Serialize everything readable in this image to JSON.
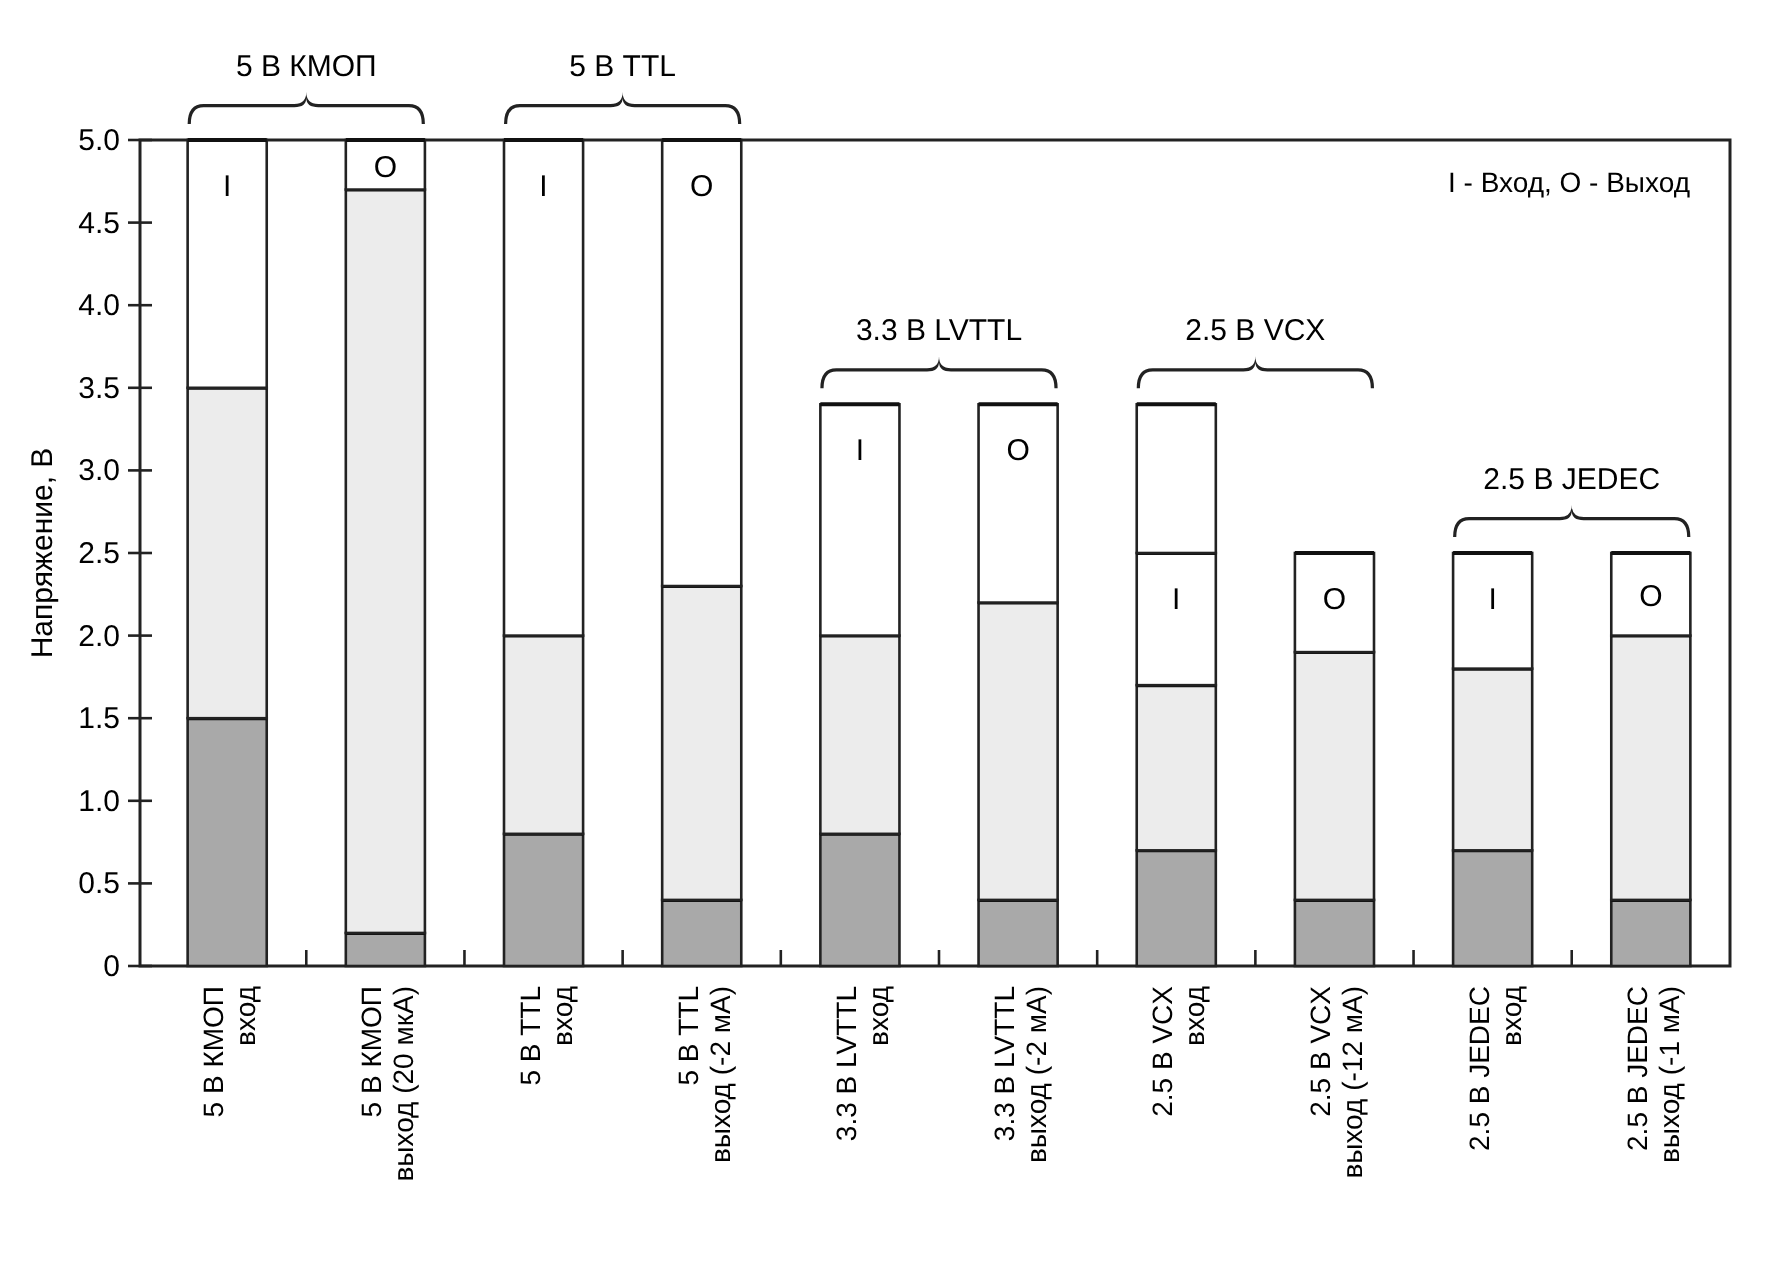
{
  "chart_data": {
    "type": "bar",
    "stacked": true,
    "ylabel": "Напряжение, В",
    "categories": [
      "5 В КМОП\nвход",
      "5 В КМОП\nвыход (20 мкА)",
      "5 В TTL\nвход",
      "5 В TTL\nвыход (-2 мА)",
      "3.3 В LVTTL\nвход",
      "3.3 В LVTTL\nвыход (-2 мА)",
      "2.5 В VCX\nвход",
      "2.5 В VCX\nвыход (-12 мА)",
      "2.5 В JEDEC\nвход",
      "2.5 В JEDEC\nвыход (-1 мА)"
    ],
    "series": [
      {
        "color": "#a9a9a9",
        "values": [
          1.5,
          0.2,
          0.8,
          0.4,
          0.8,
          0.4,
          0.7,
          0.4,
          0.7,
          0.4
        ]
      },
      {
        "color": "#ececec",
        "values": [
          2.0,
          4.5,
          1.2,
          1.9,
          1.2,
          1.8,
          1.0,
          1.5,
          1.1,
          1.6
        ]
      },
      {
        "color": "#ffffff",
        "values": [
          1.5,
          0.3,
          3.0,
          2.7,
          1.4,
          1.2,
          0.8,
          0.6,
          0.7,
          0.5
        ],
        "value_labels": [
          "I",
          "O",
          "I",
          "O",
          "I",
          "O",
          "I",
          "O",
          "I",
          "O"
        ]
      },
      {
        "color": "#ffffff",
        "values": [
          null,
          null,
          null,
          null,
          null,
          null,
          0.9,
          null,
          null,
          null
        ]
      }
    ],
    "ylim": [
      0,
      5
    ],
    "yticks": [
      0,
      {
        "value": 0.5,
        "label": "0.5"
      },
      {
        "value": 1,
        "label": "1.0"
      },
      {
        "value": 1.5,
        "label": "1.5"
      },
      {
        "value": 2,
        "label": "2.0"
      },
      {
        "value": 2.5,
        "label": "2.5"
      },
      {
        "value": 3,
        "label": "3.0"
      },
      {
        "value": 3.5,
        "label": "3.5"
      },
      {
        "value": 4,
        "label": "4.0"
      },
      {
        "value": 4.5,
        "label": "4.5"
      },
      {
        "value": 5,
        "label": "5.0"
      }
    ],
    "grid": false,
    "annotations": [
      {
        "text": "5 В КМОП",
        "x": "5 В КМОП\nвход",
        "y": 5
      },
      {
        "text": "5 В TTL",
        "x": "5 В TTL\nвход",
        "y": 5
      },
      {
        "text": "3.3 В LVTTL",
        "x": "3.3 В LVTTL\nвход",
        "y": 3.4
      },
      {
        "text": "2.5 В VCX",
        "x": "2.5 В VCX\nвход",
        "y": 3.4
      },
      {
        "text": "2.5 В JEDEC",
        "x": "2.5 В JEDEC\nвход",
        "y": 2.5
      },
      "I - Вход, O - Выход"
    ]
  }
}
